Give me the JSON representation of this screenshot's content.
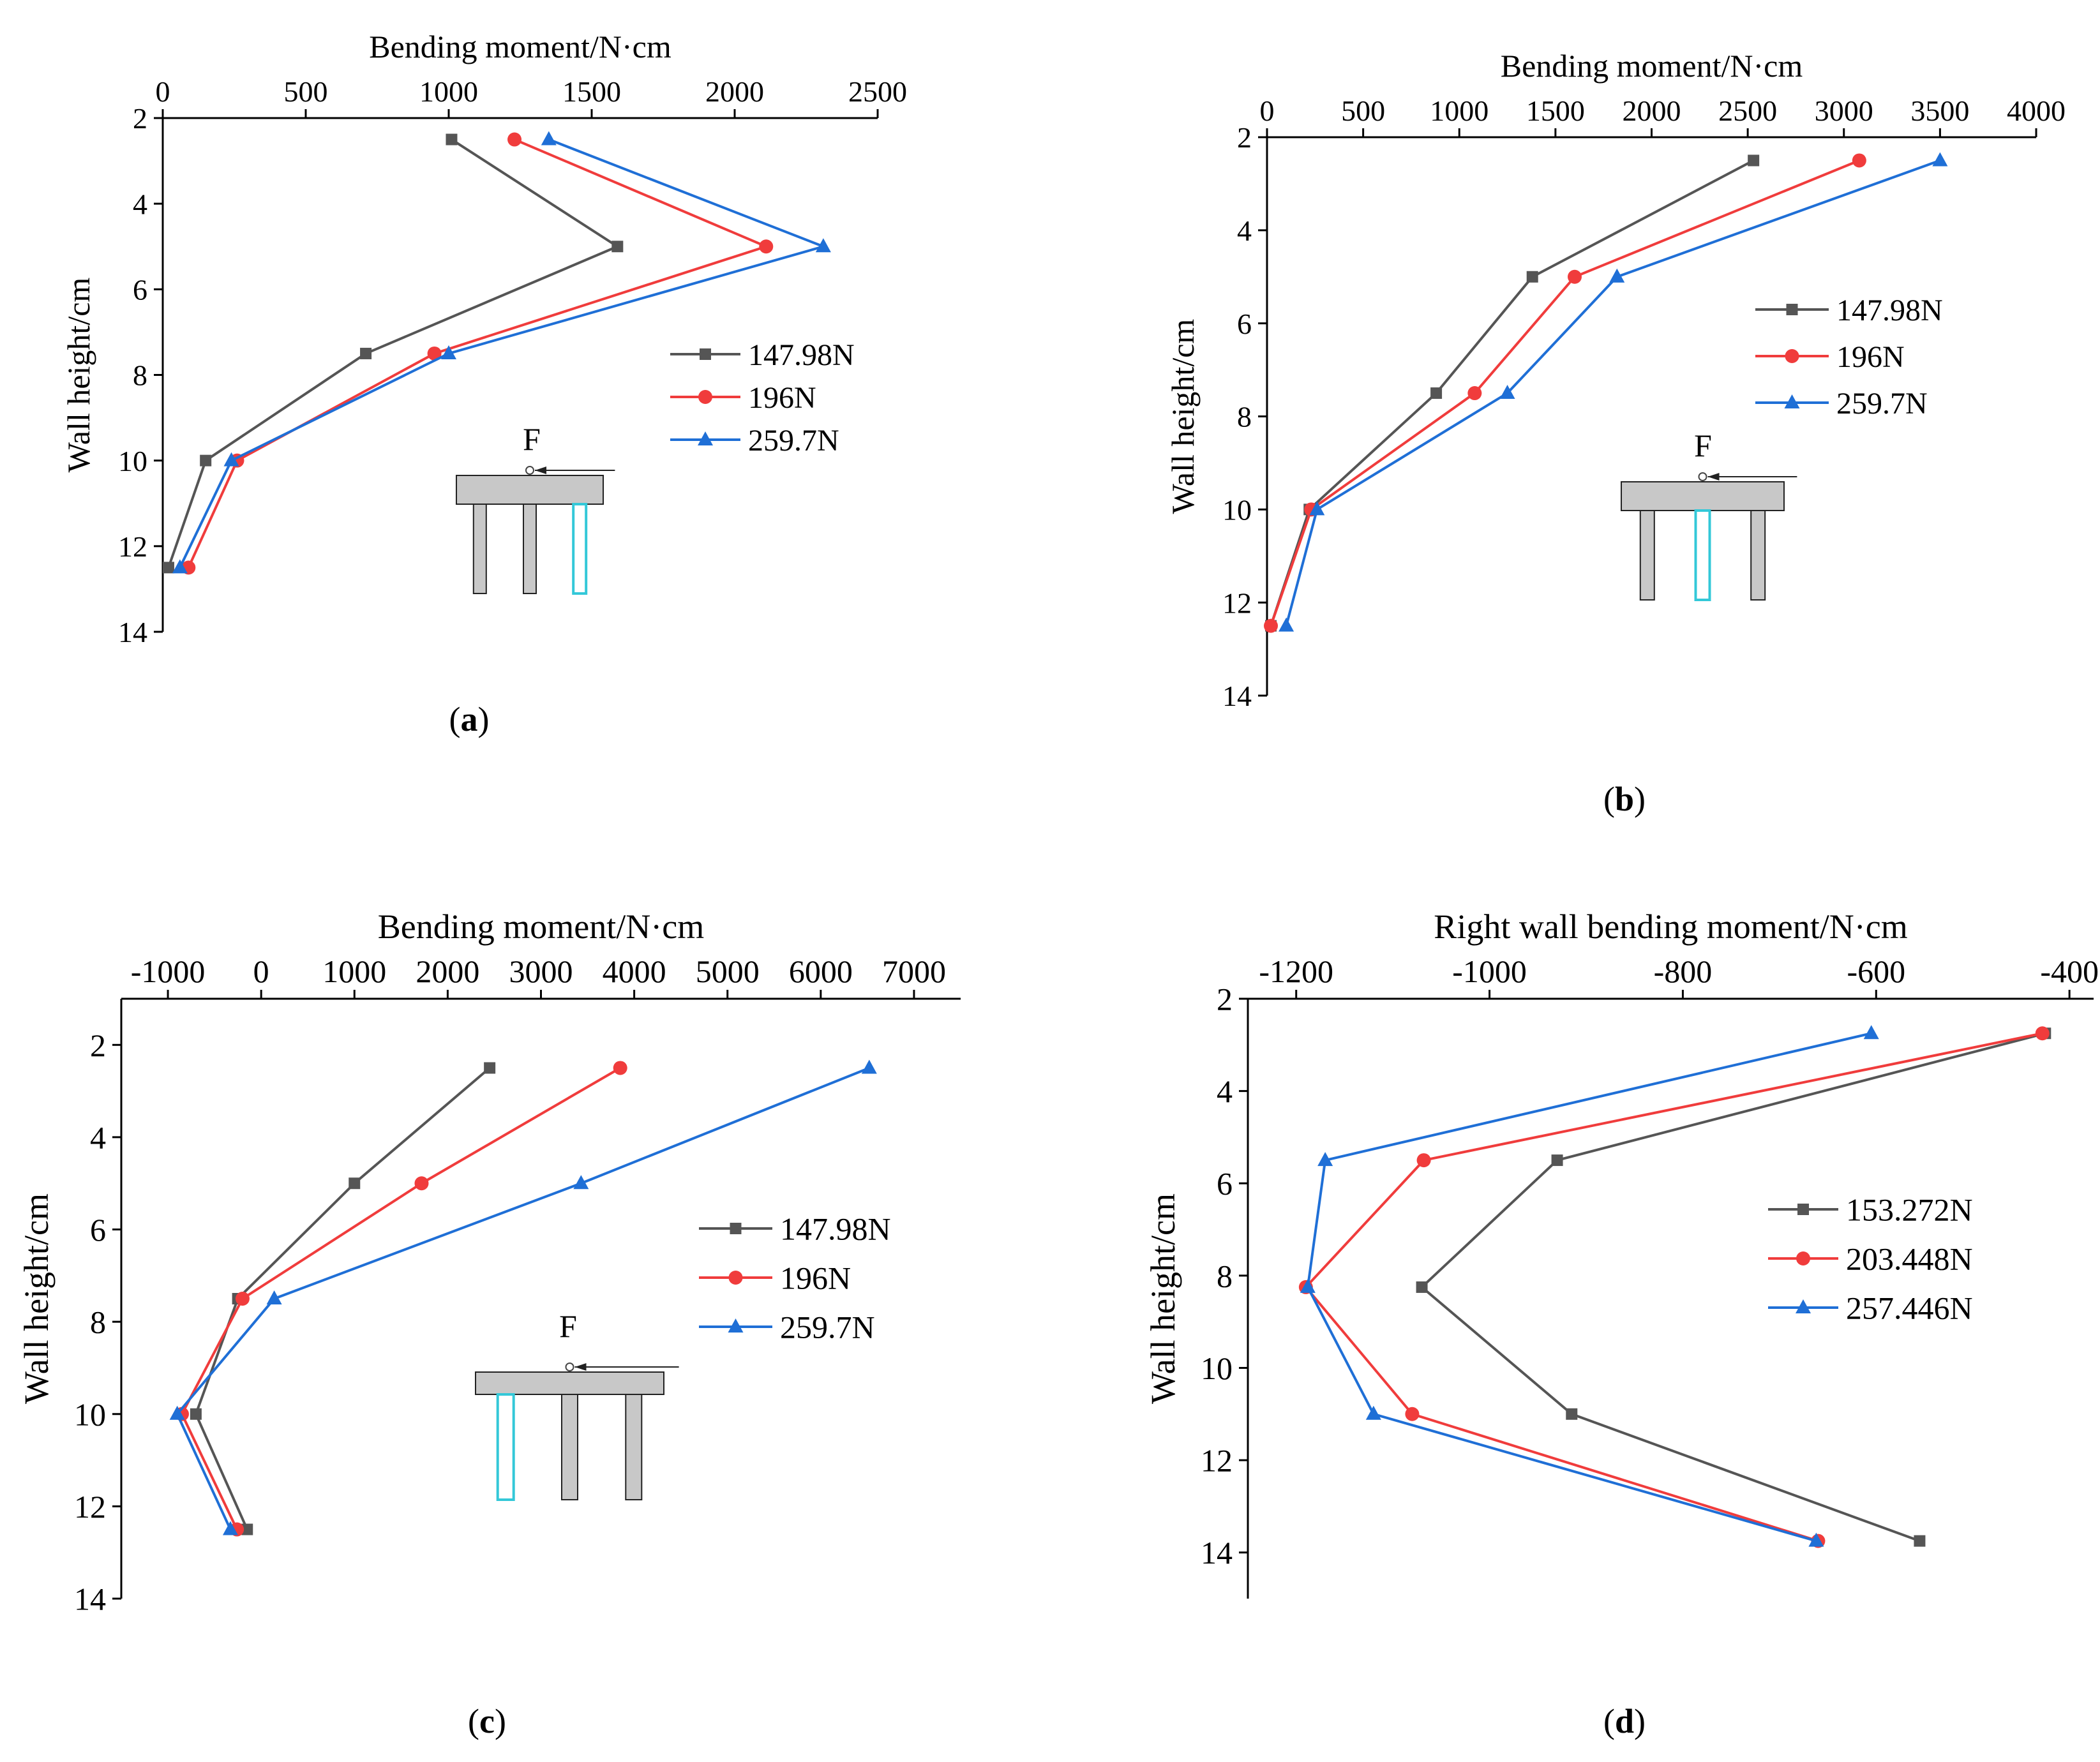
{
  "chart_data": [
    {
      "id": "a",
      "type": "line",
      "panel_label": "a",
      "title": "",
      "xlabel": "Bending moment/N·cm",
      "ylabel": "Wall height/cm",
      "xlim": [
        0,
        2500
      ],
      "ylim": [
        2,
        14
      ],
      "xticks": [
        0,
        500,
        1000,
        1500,
        2000,
        2500
      ],
      "yticks": [
        2,
        4,
        6,
        8,
        10,
        12,
        14
      ],
      "y": [
        2.5,
        5,
        7.5,
        10,
        12.5
      ],
      "series": [
        {
          "name": "147.98N",
          "color": "#555555",
          "marker": "square",
          "values": [
            1010,
            1590,
            710,
            150,
            20
          ]
        },
        {
          "name": "196N",
          "color": "#f03c3c",
          "marker": "circle",
          "values": [
            1230,
            2110,
            950,
            260,
            90
          ]
        },
        {
          "name": "259.7N",
          "color": "#1f6fd6",
          "marker": "triangle",
          "values": [
            1350,
            2310,
            1000,
            240,
            60
          ]
        }
      ],
      "inset": {
        "label": "F",
        "highlight": "right"
      }
    },
    {
      "id": "b",
      "type": "line",
      "panel_label": "b",
      "title": "",
      "xlabel": "Bending moment/N·cm",
      "ylabel": "Wall height/cm",
      "xlim": [
        0,
        4000
      ],
      "ylim": [
        2,
        14
      ],
      "xticks": [
        0,
        500,
        1000,
        1500,
        2000,
        2500,
        3000,
        3500,
        4000
      ],
      "yticks": [
        2,
        4,
        6,
        8,
        10,
        12,
        14
      ],
      "y": [
        2.5,
        5,
        7.5,
        10,
        12.5
      ],
      "series": [
        {
          "name": "147.98N",
          "color": "#555555",
          "marker": "square",
          "values": [
            2530,
            1380,
            880,
            220,
            20
          ]
        },
        {
          "name": "196N",
          "color": "#f03c3c",
          "marker": "circle",
          "values": [
            3080,
            1600,
            1080,
            230,
            20
          ]
        },
        {
          "name": "259.7N",
          "color": "#1f6fd6",
          "marker": "triangle",
          "values": [
            3500,
            1820,
            1250,
            260,
            100
          ]
        }
      ],
      "inset": {
        "label": "F",
        "highlight": "middle"
      }
    },
    {
      "id": "c",
      "type": "line",
      "panel_label": "c",
      "title": "",
      "xlabel": "Bending moment/N·cm",
      "ylabel": "Wall height/cm",
      "xlim": [
        -1500,
        7500
      ],
      "ylim": [
        1,
        14
      ],
      "xticks": [
        -1000,
        0,
        1000,
        2000,
        3000,
        4000,
        5000,
        6000,
        7000
      ],
      "yticks": [
        2,
        4,
        6,
        8,
        10,
        12,
        14
      ],
      "y": [
        2.5,
        5,
        7.5,
        10,
        12.5
      ],
      "series": [
        {
          "name": "147.98N",
          "color": "#555555",
          "marker": "square",
          "values": [
            2450,
            1000,
            -250,
            -700,
            -150
          ]
        },
        {
          "name": "196N",
          "color": "#f03c3c",
          "marker": "circle",
          "values": [
            3850,
            1720,
            -200,
            -850,
            -260
          ]
        },
        {
          "name": "259.7N",
          "color": "#1f6fd6",
          "marker": "triangle",
          "values": [
            6520,
            3430,
            140,
            -900,
            -330
          ]
        }
      ],
      "inset": {
        "label": "F",
        "highlight": "left"
      }
    },
    {
      "id": "d",
      "type": "line",
      "panel_label": "d",
      "title": "",
      "xlabel": "Right wall bending moment/N·cm",
      "ylabel": "Wall height/cm",
      "xlim": [
        -1250,
        -375
      ],
      "ylim": [
        2,
        15
      ],
      "xticks": [
        -1200,
        -1000,
        -800,
        -600,
        -400
      ],
      "yticks": [
        2,
        4,
        6,
        8,
        10,
        12,
        14
      ],
      "y": [
        2.75,
        5.5,
        8.25,
        11,
        13.75
      ],
      "series": [
        {
          "name": "153.272N",
          "color": "#555555",
          "marker": "square",
          "values": [
            -425,
            -930,
            -1070,
            -915,
            -555
          ]
        },
        {
          "name": "203.448N",
          "color": "#f03c3c",
          "marker": "circle",
          "values": [
            -428,
            -1068,
            -1190,
            -1080,
            -660
          ]
        },
        {
          "name": "257.446N",
          "color": "#1f6fd6",
          "marker": "triangle",
          "values": [
            -605,
            -1170,
            -1188,
            -1120,
            -662
          ]
        }
      ],
      "inset": null
    }
  ]
}
